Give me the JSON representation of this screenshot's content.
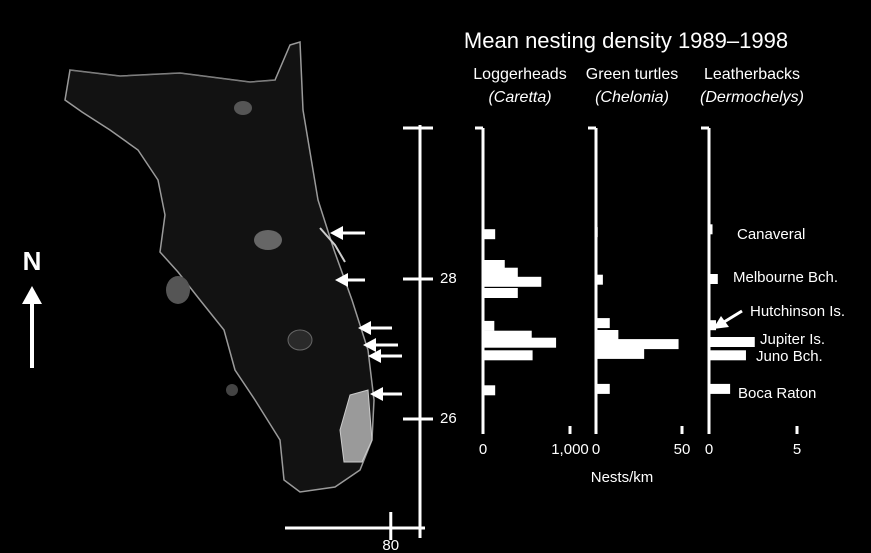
{
  "title": "Mean nesting density 1989–1998",
  "xlabel": "Nests/km",
  "map": {
    "north": "N",
    "ylim": [
      24.3,
      30.2
    ],
    "yticks": [
      28,
      26
    ],
    "xlim": [
      81.7,
      79.45
    ],
    "xticks": [
      80
    ]
  },
  "locations": [
    "Canaveral",
    "Melbourne Bch.",
    "Hutchinson Is.",
    "Jupiter Is.",
    "Juno Bch.",
    "Boca Raton"
  ],
  "chart_data": [
    {
      "type": "bar",
      "orientation": "horizontal",
      "title": "Loggerheads",
      "subtitle": "(Caretta)",
      "color": "#ffffff",
      "y": [
        28.64,
        28.2,
        28.09,
        27.96,
        27.8,
        27.33,
        27.19,
        27.09,
        26.91,
        26.41
      ],
      "values": [
        140,
        250,
        400,
        670,
        400,
        130,
        560,
        840,
        570,
        140
      ],
      "xlim": [
        0,
        1000
      ],
      "xticks": [
        0,
        {
          "value": 1000,
          "label": "1,000"
        }
      ]
    },
    {
      "type": "bar",
      "orientation": "horizontal",
      "title": "Green turtles",
      "subtitle": "(Chelonia)",
      "color": "#ffffff",
      "y": [
        28.67,
        27.99,
        27.37,
        27.2,
        27.07,
        26.93,
        26.43
      ],
      "values": [
        1,
        4,
        8,
        13,
        48,
        28,
        8
      ],
      "xlim": [
        0,
        50
      ],
      "xticks": [
        0,
        50
      ]
    },
    {
      "type": "bar",
      "orientation": "horizontal",
      "title": "Leatherbacks",
      "subtitle": "(Dermochelys)",
      "color": "#ffffff",
      "y": [
        28.71,
        28.0,
        27.34,
        27.1,
        26.91,
        26.43
      ],
      "values": [
        0.2,
        0.5,
        0.4,
        2.6,
        2.1,
        1.2
      ],
      "xlim": [
        0,
        5
      ],
      "xticks": [
        0,
        5
      ]
    }
  ]
}
